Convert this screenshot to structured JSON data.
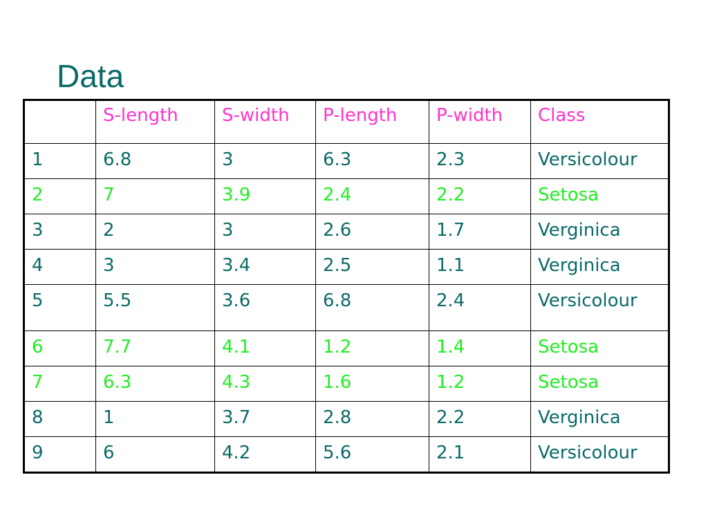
{
  "title": "Data",
  "colors": {
    "title": "#0a6a66",
    "header": "#ff33cc",
    "default_row": "#0a6a66",
    "setosa_row": "#22ee22",
    "border": "#000000"
  },
  "table": {
    "headers": [
      "",
      "S-length",
      "S-width",
      "P-length",
      "P-width",
      "Class"
    ],
    "rows": [
      {
        "cells": [
          "1",
          "6.8",
          "3",
          "6.3",
          "2.3",
          "Versicolour"
        ],
        "color": "#0a6a66"
      },
      {
        "cells": [
          "2",
          "7",
          "3.9",
          "2.4",
          "2.2",
          "Setosa"
        ],
        "color": "#22ee22"
      },
      {
        "cells": [
          "3",
          "2",
          "3",
          "2.6",
          "1.7",
          "Verginica"
        ],
        "color": "#0a6a66"
      },
      {
        "cells": [
          "4",
          "3",
          "3.4",
          "2.5",
          "1.1",
          "Verginica"
        ],
        "color": "#0a6a66"
      },
      {
        "cells": [
          "5",
          "5.5",
          "3.6",
          "6.8",
          "2.4",
          "Versicolour"
        ],
        "color": "#0a6a66"
      },
      {
        "cells": [
          "6",
          "7.7",
          "4.1",
          "1.2",
          "1.4",
          "Setosa"
        ],
        "color": "#22ee22"
      },
      {
        "cells": [
          "7",
          "6.3",
          "4.3",
          "1.6",
          "1.2",
          "Setosa"
        ],
        "color": "#22ee22"
      },
      {
        "cells": [
          "8",
          "1",
          "3.7",
          "2.8",
          "2.2",
          "Verginica"
        ],
        "color": "#0a6a66"
      },
      {
        "cells": [
          "9",
          "6",
          "4.2",
          "5.6",
          "2.1",
          "Versicolour"
        ],
        "color": "#0a6a66"
      }
    ]
  }
}
